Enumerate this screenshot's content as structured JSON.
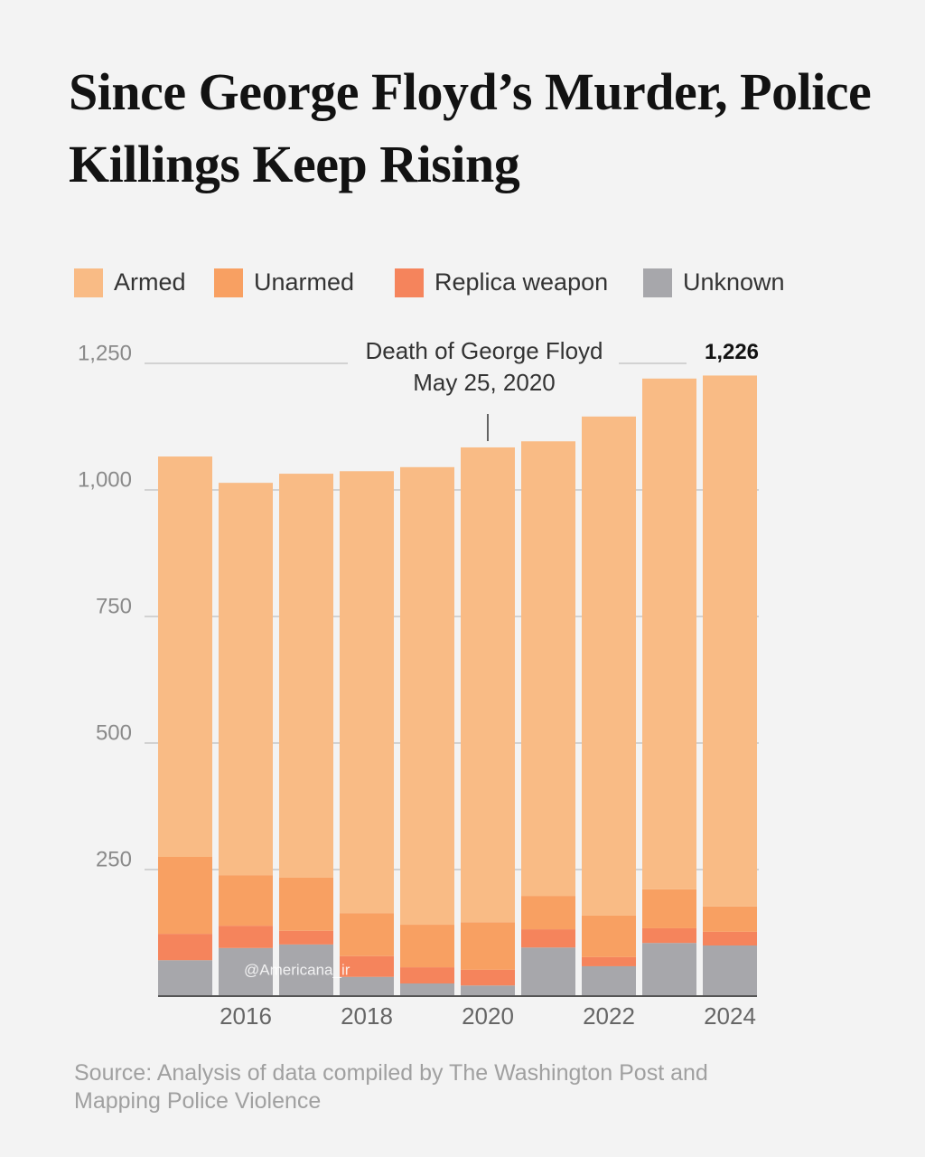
{
  "chart_data": {
    "type": "stacked_bar",
    "title": "Since George Floyd’s Murder, Police Killings Keep Rising",
    "source": "Source: Analysis of data compiled by The Washington Post and Mapping Police Violence",
    "watermark": "@Americana_ir",
    "categories": [
      null,
      "2016",
      null,
      "2018",
      null,
      "2020",
      null,
      "2022",
      null,
      "2024"
    ],
    "series": [
      {
        "name": "Armed",
        "color": "#f9bb85",
        "values": [
          791,
          775,
          798,
          873,
          904,
          938,
          898,
          986,
          1009,
          1049
        ]
      },
      {
        "name": "Unarmed",
        "color": "#f8a062",
        "values": [
          152,
          100,
          105,
          85,
          84,
          94,
          66,
          82,
          77,
          50
        ]
      },
      {
        "name": "Replica weapon",
        "color": "#f5845c",
        "values": [
          52,
          44,
          27,
          41,
          32,
          31,
          36,
          18,
          29,
          27
        ]
      },
      {
        "name": "Unknown",
        "color": "#a7a7ab",
        "values": [
          71,
          95,
          102,
          38,
          25,
          21,
          96,
          59,
          105,
          100
        ]
      }
    ],
    "total_label": {
      "value": 1226,
      "label": "1,226"
    },
    "annotation": [
      "Death of George Floyd",
      "May 25, 2020"
    ],
    "ylim": [
      0,
      1250
    ],
    "yticks": [
      250,
      500,
      750,
      {
        "value": 1000,
        "label": "1,000"
      },
      {
        "value": 1250,
        "label": "1,250"
      }
    ],
    "grid": true
  }
}
